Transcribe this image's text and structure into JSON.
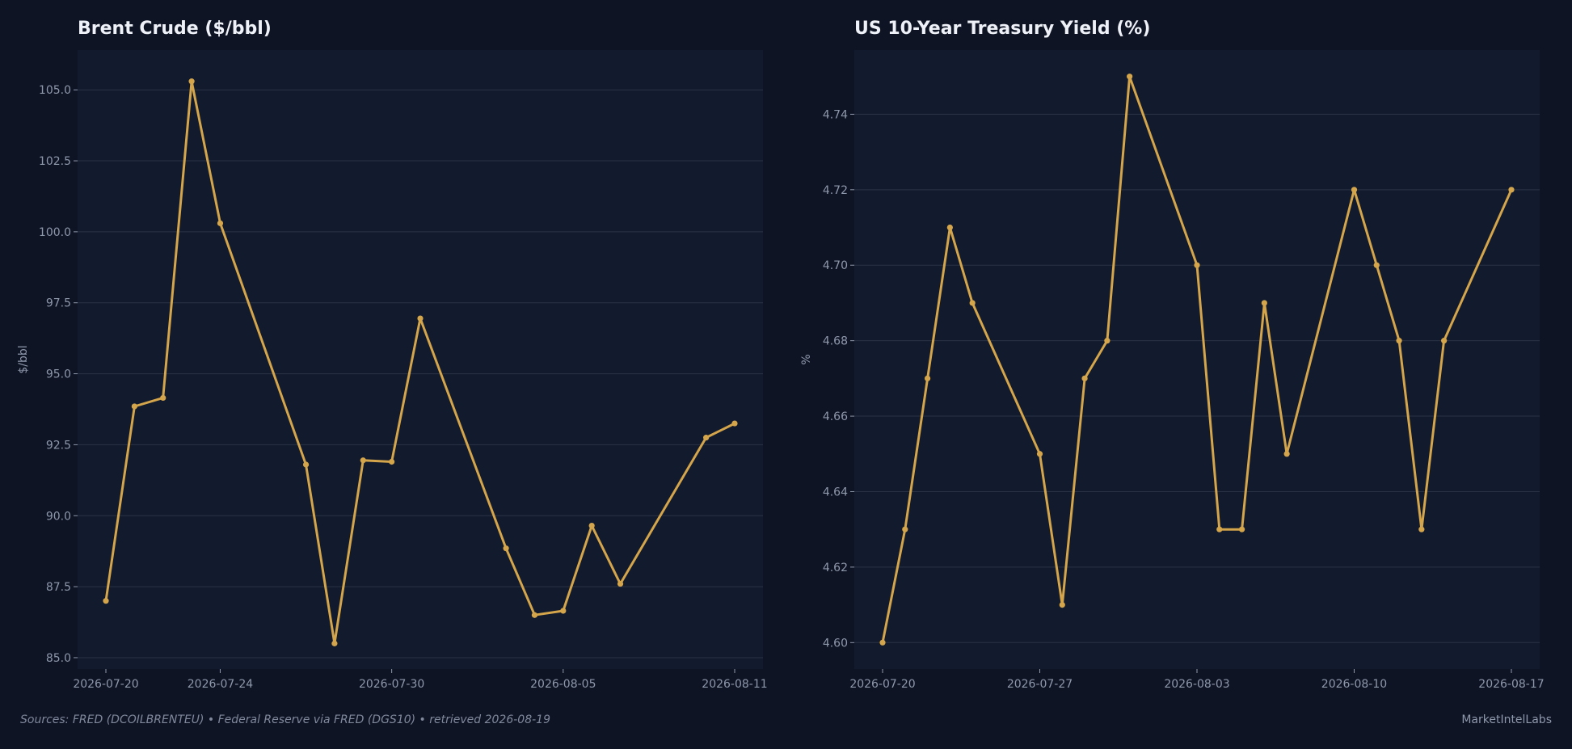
{
  "colors": {
    "background": "#0e1424",
    "plot_background": "#121b2e",
    "gridline": "#2a3346",
    "line": "#d4a54b",
    "text": "#eef1f7",
    "muted_text": "#8e98ab"
  },
  "chart_data": [
    {
      "type": "line",
      "title": "Brent Crude ($/bbl)",
      "xlabel": "",
      "ylabel": "$/bbl",
      "x_ticks": [
        "2026-07-20",
        "2026-07-24",
        "2026-07-30",
        "2026-08-05",
        "2026-08-11"
      ],
      "y_ticks": [
        "85.0",
        "87.5",
        "90.0",
        "92.5",
        "95.0",
        "97.5",
        "100.0",
        "102.5",
        "105.0"
      ],
      "ylim": [
        84.6,
        106.4
      ],
      "grid": true,
      "series": [
        {
          "x": [
            "2026-07-20",
            "2026-07-21",
            "2026-07-22",
            "2026-07-23",
            "2026-07-24",
            "2026-07-27",
            "2026-07-28",
            "2026-07-29",
            "2026-07-30",
            "2026-07-31",
            "2026-08-03",
            "2026-08-04",
            "2026-08-05",
            "2026-08-06",
            "2026-08-07",
            "2026-08-10",
            "2026-08-11"
          ],
          "values": [
            87.0,
            93.85,
            94.15,
            105.3,
            100.3,
            91.8,
            85.5,
            91.95,
            91.9,
            96.95,
            88.85,
            86.5,
            86.65,
            89.65,
            87.6,
            92.75,
            93.25
          ]
        }
      ]
    },
    {
      "type": "line",
      "title": "US 10-Year Treasury Yield (%)",
      "xlabel": "",
      "ylabel": "%",
      "x_ticks": [
        "2026-07-20",
        "2026-07-27",
        "2026-08-03",
        "2026-08-10",
        "2026-08-17"
      ],
      "y_ticks": [
        "4.60",
        "4.62",
        "4.64",
        "4.66",
        "4.68",
        "4.70",
        "4.72",
        "4.74"
      ],
      "ylim": [
        4.593,
        4.757
      ],
      "grid": true,
      "series": [
        {
          "x": [
            "2026-07-20",
            "2026-07-21",
            "2026-07-22",
            "2026-07-23",
            "2026-07-24",
            "2026-07-27",
            "2026-07-28",
            "2026-07-29",
            "2026-07-30",
            "2026-07-31",
            "2026-08-03",
            "2026-08-04",
            "2026-08-05",
            "2026-08-06",
            "2026-08-07",
            "2026-08-10",
            "2026-08-11",
            "2026-08-12",
            "2026-08-13",
            "2026-08-14",
            "2026-08-17"
          ],
          "values": [
            4.6,
            4.63,
            4.67,
            4.71,
            4.69,
            4.65,
            4.61,
            4.67,
            4.68,
            4.75,
            4.7,
            4.63,
            4.63,
            4.69,
            4.65,
            4.72,
            4.7,
            4.68,
            4.63,
            4.68,
            4.72
          ]
        }
      ]
    }
  ],
  "footer": {
    "sources": "Sources: FRED (DCOILBRENTEU)  •  Federal Reserve via FRED (DGS10)  •  retrieved 2026-08-19",
    "brand": "MarketIntelLabs"
  }
}
